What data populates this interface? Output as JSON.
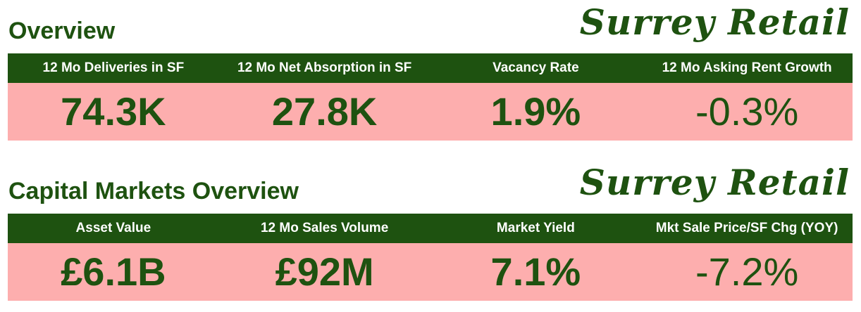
{
  "overview": {
    "title": "Overview",
    "brand": "Surrey Retail",
    "metrics": [
      {
        "label": "12 Mo Deliveries in SF",
        "value": "74.3K"
      },
      {
        "label": "12 Mo Net Absorption in SF",
        "value": "27.8K"
      },
      {
        "label": "Vacancy Rate",
        "value": "1.9%"
      },
      {
        "label": "12 Mo Asking Rent Growth",
        "value": "-0.3%"
      }
    ]
  },
  "capital_markets": {
    "title": "Capital Markets Overview",
    "brand": "Surrey Retail",
    "metrics": [
      {
        "label": "Asset Value",
        "value": "£6.1B"
      },
      {
        "label": "12 Mo Sales Volume",
        "value": "£92M"
      },
      {
        "label": "Market Yield",
        "value": "7.1%"
      },
      {
        "label": "Mkt Sale Price/SF Chg (YOY)",
        "value": "-7.2%"
      }
    ]
  },
  "colors": {
    "green": "#1e5210",
    "pink": "#fdaeae",
    "white": "#ffffff"
  }
}
